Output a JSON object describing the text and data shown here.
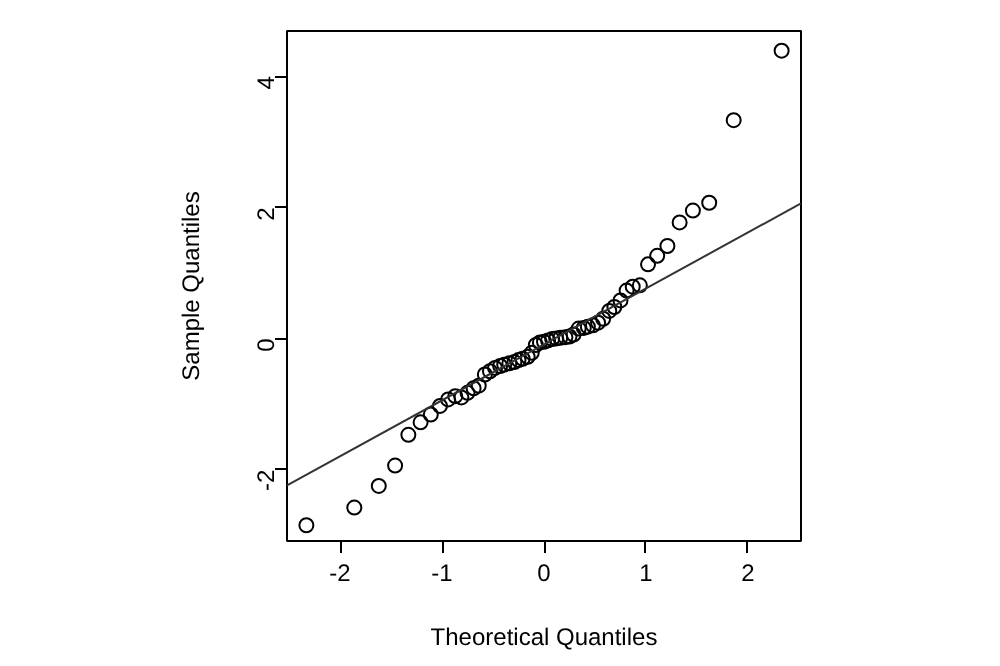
{
  "chart_data": {
    "type": "scatter",
    "xlabel": "Theoretical Quantiles",
    "ylabel": "Sample Quantiles",
    "xlim": [
      -2.52,
      2.52
    ],
    "ylim": [
      -3.09,
      4.69
    ],
    "xticks": [
      -2,
      -1,
      0,
      1,
      2
    ],
    "yticks": [
      -2,
      0,
      2,
      4
    ],
    "series": [
      {
        "marker": "circle",
        "color": "#000000",
        "x": [
          -2.33,
          -1.86,
          -1.62,
          -1.46,
          -1.33,
          -1.21,
          -1.11,
          -1.02,
          -0.94,
          -0.87,
          -0.81,
          -0.75,
          -0.69,
          -0.64,
          -0.58,
          -0.53,
          -0.48,
          -0.43,
          -0.39,
          -0.34,
          -0.29,
          -0.25,
          -0.21,
          -0.16,
          -0.12,
          -0.08,
          -0.04,
          0,
          0.04,
          0.08,
          0.12,
          0.16,
          0.21,
          0.25,
          0.29,
          0.34,
          0.39,
          0.43,
          0.48,
          0.53,
          0.58,
          0.64,
          0.69,
          0.75,
          0.81,
          0.87,
          0.94,
          1.02,
          1.11,
          1.21,
          1.33,
          1.46,
          1.62,
          1.86,
          2.33
        ],
        "values": [
          -2.85,
          -2.58,
          -2.25,
          -1.94,
          -1.47,
          -1.28,
          -1.16,
          -1.03,
          -0.93,
          -0.88,
          -0.9,
          -0.83,
          -0.76,
          -0.72,
          -0.55,
          -0.5,
          -0.45,
          -0.42,
          -0.4,
          -0.38,
          -0.36,
          -0.33,
          -0.31,
          -0.28,
          -0.22,
          -0.1,
          -0.06,
          -0.05,
          -0.03,
          -0.01,
          0.0,
          0.01,
          0.02,
          0.03,
          0.06,
          0.15,
          0.16,
          0.18,
          0.2,
          0.24,
          0.3,
          0.42,
          0.48,
          0.58,
          0.73,
          0.79,
          0.81,
          1.13,
          1.26,
          1.41,
          1.77,
          1.95,
          2.07,
          3.33,
          4.39
        ]
      },
      {
        "type": "line",
        "marker": "none",
        "color": "#333333",
        "x": [
          -2.52,
          2.52
        ],
        "values": [
          -2.24,
          2.06
        ]
      }
    ]
  }
}
